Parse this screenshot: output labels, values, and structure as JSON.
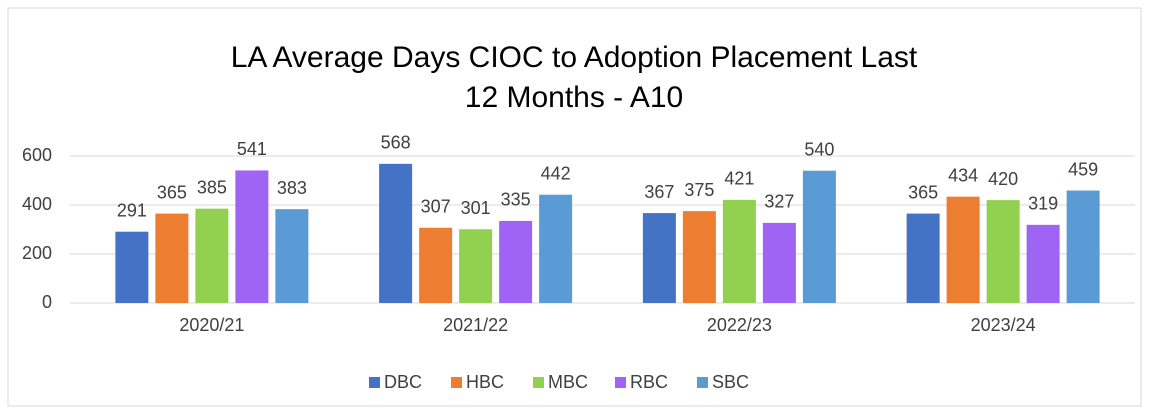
{
  "chart_data": {
    "type": "bar",
    "title": "LA Average Days CIOC to Adoption Placement Last 12 Months - A10",
    "categories": [
      "2020/21",
      "2021/22",
      "2022/23",
      "2023/24"
    ],
    "series": [
      {
        "name": "DBC",
        "color": "#4472c4",
        "values": [
          291,
          568,
          367,
          365
        ]
      },
      {
        "name": "HBC",
        "color": "#ed7d31",
        "values": [
          365,
          307,
          375,
          434
        ]
      },
      {
        "name": "MBC",
        "color": "#92d050",
        "values": [
          385,
          301,
          421,
          420
        ]
      },
      {
        "name": "RBC",
        "color": "#a064f5",
        "values": [
          541,
          335,
          327,
          319
        ]
      },
      {
        "name": "SBC",
        "color": "#5b9bd5",
        "values": [
          383,
          442,
          540,
          459
        ]
      }
    ],
    "ylim": [
      0,
      600
    ],
    "yticks": [
      0,
      200,
      400,
      600
    ],
    "grid": true,
    "legend": "bottom"
  }
}
